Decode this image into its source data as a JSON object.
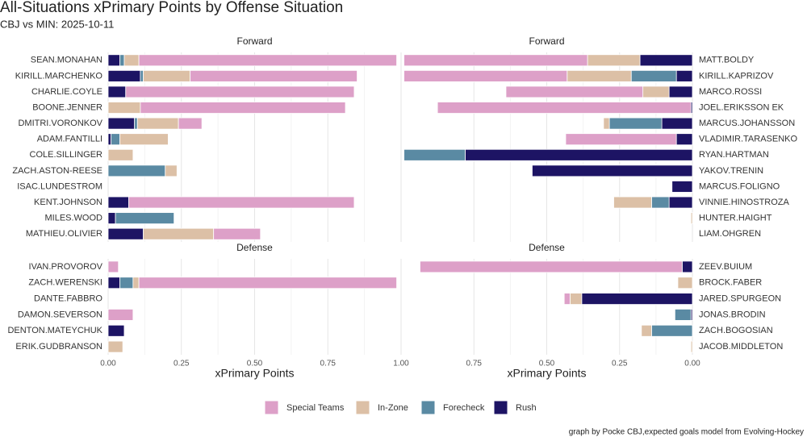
{
  "title": "All-Situations xPrimary Points by Offense Situation",
  "subtitle": "CBJ vs MIN: 2025-10-11",
  "caption": "graph by Pocke CBJ,expected goals model from Evolving-Hockey",
  "chart_data": [
    {
      "type": "bar",
      "orientation": "horizontal",
      "stacked": true,
      "strip": "Forward",
      "xlim": [
        0,
        1
      ],
      "categories": [
        "SEAN.MONAHAN",
        "KIRILL.MARCHENKO",
        "CHARLIE.COYLE",
        "BOONE.JENNER",
        "DMITRI.VORONKOV",
        "ADAM.FANTILLI",
        "COLE.SILLINGER",
        "ZACH.ASTON-REESE",
        "ISAC.LUNDESTROM",
        "KENT.JOHNSON",
        "MILES.WOOD",
        "MATHIEU.OLIVIER"
      ],
      "series": [
        {
          "name": "Special Teams",
          "color": "#dda0c8",
          "values": [
            0.88,
            0.57,
            0.78,
            0.7,
            0.08,
            0,
            0,
            0,
            0,
            0.77,
            0,
            0.16
          ]
        },
        {
          "name": "In-Zone",
          "color": "#dcc0a6",
          "values": [
            0.05,
            0.16,
            0,
            0.11,
            0.14,
            0.165,
            0.085,
            0.04,
            0,
            0,
            0,
            0.24
          ]
        },
        {
          "name": "Forecheck",
          "color": "#5a8aa3",
          "values": [
            0.015,
            0.01,
            0,
            0,
            0.01,
            0.03,
            0,
            0.195,
            0,
            0,
            0.2,
            0
          ]
        },
        {
          "name": "Rush",
          "color": "#1d1464",
          "values": [
            0.04,
            0.11,
            0.06,
            0,
            0.09,
            0.01,
            0,
            0,
            0,
            0.07,
            0.025,
            0.12
          ]
        }
      ]
    },
    {
      "type": "bar",
      "orientation": "horizontal",
      "stacked": true,
      "strip": "Forward",
      "xlim": [
        1,
        0
      ],
      "categories": [
        "MATT.BOLDY",
        "KIRILL.KAPRIZOV",
        "MARCO.ROSSI",
        "JOEL.ERIKSSON EK",
        "MARCUS.JOHANSSON",
        "VLADIMIR.TARASENKO",
        "RYAN.HARTMAN",
        "YAKOV.TRENIN",
        "MARCUS.FOLIGNO",
        "VINNIE.HINOSTROZA",
        "HUNTER.HAIGHT",
        "LIAM.OHGREN"
      ],
      "series": [
        {
          "name": "Special Teams",
          "color": "#dda0c8",
          "values": [
            0.63,
            0.56,
            0.47,
            0.87,
            0,
            0.38,
            0,
            0,
            0,
            0,
            0,
            0
          ]
        },
        {
          "name": "In-Zone",
          "color": "#dcc0a6",
          "values": [
            0.18,
            0.22,
            0.09,
            0,
            0.02,
            0,
            0,
            0,
            0,
            0.13,
            0.005,
            0
          ]
        },
        {
          "name": "Forecheck",
          "color": "#5a8aa3",
          "values": [
            0,
            0.155,
            0,
            0,
            0.18,
            0,
            0.21,
            0,
            0,
            0.06,
            0,
            0
          ]
        },
        {
          "name": "Rush",
          "color": "#1d1464",
          "values": [
            0.18,
            0.055,
            0.08,
            0.005,
            0.105,
            0.055,
            0.78,
            0.55,
            0.07,
            0.08,
            0,
            0
          ]
        }
      ]
    },
    {
      "type": "bar",
      "orientation": "horizontal",
      "stacked": true,
      "strip": "Defense",
      "xlim": [
        0,
        1
      ],
      "xlabel": "xPrimary Points",
      "xticks": [
        {
          "value": 0,
          "label": "0.00"
        },
        {
          "value": 0.25,
          "label": "0.25"
        },
        {
          "value": 0.5,
          "label": "0.50"
        },
        {
          "value": 0.75,
          "label": "0.75"
        },
        {
          "value": 1,
          "label": "1.00"
        }
      ],
      "categories": [
        "IVAN.PROVOROV",
        "ZACH.WERENSKI",
        "DANTE.FABBRO",
        "DAMON.SEVERSON",
        "DENTON.MATEYCHUK",
        "ERIK.GUDBRANSON"
      ],
      "series": [
        {
          "name": "Special Teams",
          "color": "#dda0c8",
          "values": [
            0.035,
            0.88,
            0,
            0.085,
            0,
            0
          ]
        },
        {
          "name": "In-Zone",
          "color": "#dcc0a6",
          "values": [
            0,
            0.02,
            0,
            0,
            0,
            0.05
          ]
        },
        {
          "name": "Forecheck",
          "color": "#5a8aa3",
          "values": [
            0,
            0.045,
            0,
            0,
            0,
            0
          ]
        },
        {
          "name": "Rush",
          "color": "#1d1464",
          "values": [
            0,
            0.04,
            0,
            0,
            0.055,
            0
          ]
        }
      ]
    },
    {
      "type": "bar",
      "orientation": "horizontal",
      "stacked": true,
      "strip": "Defense",
      "xlim": [
        1,
        0
      ],
      "xlabel": "xPrimary Points",
      "xticks": [
        {
          "value": 0.75,
          "label": "0.75"
        },
        {
          "value": 0.5,
          "label": "0.50"
        },
        {
          "value": 0.25,
          "label": "0.25"
        },
        {
          "value": 0,
          "label": "0.00"
        }
      ],
      "categories": [
        "ZEEV.BUIUM",
        "BROCK.FABER",
        "JARED.SPURGEON",
        "JONAS.BRODIN",
        "ZACH.BOGOSIAN",
        "JACOB.MIDDLETON"
      ],
      "series": [
        {
          "name": "Special Teams",
          "color": "#dda0c8",
          "values": [
            0.9,
            0,
            0.02,
            0,
            0,
            0
          ]
        },
        {
          "name": "In-Zone",
          "color": "#dcc0a6",
          "values": [
            0,
            0.05,
            0.04,
            0,
            0.035,
            0.005
          ]
        },
        {
          "name": "Forecheck",
          "color": "#5a8aa3",
          "values": [
            0,
            0,
            0,
            0.055,
            0.14,
            0
          ]
        },
        {
          "name": "Rush",
          "color": "#1d1464",
          "values": [
            0.035,
            0,
            0.38,
            0.005,
            0,
            0
          ]
        }
      ]
    }
  ]
}
